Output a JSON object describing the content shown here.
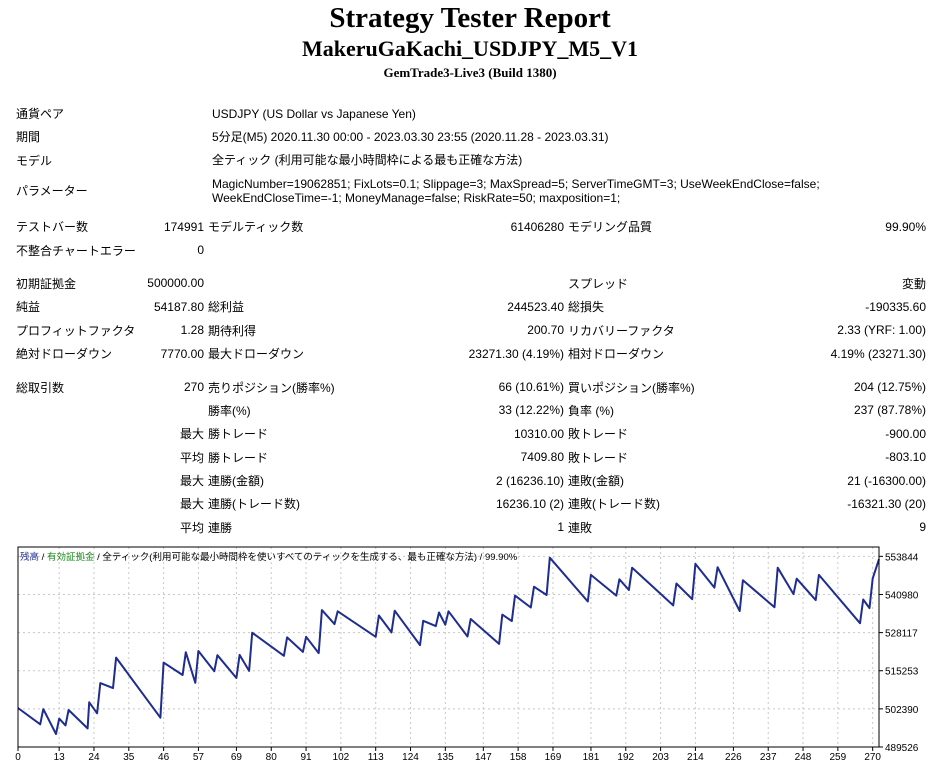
{
  "report": {
    "title": "Strategy Tester Report",
    "ea_name": "MakeruGaKachi_USDJPY_M5_V1",
    "server": "GemTrade3-Live3 (Build 1380)"
  },
  "info": [
    {
      "label": "通貨ペア",
      "value": "USDJPY (US Dollar vs Japanese Yen)"
    },
    {
      "label": "期間",
      "value": "5分足(M5) 2020.11.30 00:00 - 2023.03.30 23:55 (2020.11.28 - 2023.03.31)"
    },
    {
      "label": "モデル",
      "value": "全ティック (利用可能な最小時間枠による最も正確な方法)"
    },
    {
      "label": "パラメーター",
      "value": "MagicNumber=19062851; FixLots=0.1; Slippage=3; MaxSpread=5; ServerTimeGMT=3; UseWeekEndClose=false; WeekEndCloseTime=-1; MoneyManage=false; RiskRate=50; maxposition=1;"
    }
  ],
  "stats": {
    "bars_label": "テストバー数",
    "bars": "174991",
    "ticks_label": "モデルティック数",
    "ticks": "61406280",
    "quality_label": "モデリング品質",
    "quality": "99.90%",
    "mismatch_label": "不整合チャートエラー",
    "mismatch": "0",
    "deposit_label": "初期証拠金",
    "deposit": "500000.00",
    "spread_label": "スプレッド",
    "spread": "変動",
    "net_label": "純益",
    "net": "54187.80",
    "gross_profit_label": "総利益",
    "gross_profit": "244523.40",
    "gross_loss_label": "総損失",
    "gross_loss": "-190335.60",
    "pf_label": "プロフィットファクタ",
    "pf": "1.28",
    "expected_label": "期待利得",
    "expected": "200.70",
    "recovery_label": "リカバリーファクタ",
    "recovery": "2.33 (YRF: 1.00)",
    "abs_dd_label": "絶対ドローダウン",
    "abs_dd": "7770.00",
    "max_dd_label": "最大ドローダウン",
    "max_dd": "23271.30 (4.19%)",
    "rel_dd_label": "相対ドローダウン",
    "rel_dd": "4.19% (23271.30)",
    "total_trades_label": "総取引数",
    "total_trades": "270",
    "short_label": "売りポジション(勝率%)",
    "short": "66 (10.61%)",
    "long_label": "買いポジション(勝率%)",
    "long": "204 (12.75%)",
    "win_rate_label": "勝率(%)",
    "win_rate": "33 (12.22%)",
    "loss_rate_label": "負率 (%)",
    "loss_rate": "237 (87.78%)",
    "largest": "最大",
    "average": "平均",
    "win_trade_label": "勝トレード",
    "loss_trade_label": "敗トレード",
    "largest_win": "10310.00",
    "largest_loss": "-900.00",
    "avg_win": "7409.80",
    "avg_loss": "-803.10",
    "cons_wins_amt_label": "連勝(金額)",
    "cons_wins_amt": "2 (16236.10)",
    "cons_losses_amt_label": "連敗(金額)",
    "cons_losses_amt": "21 (-16300.00)",
    "cons_wins_cnt_label": "連勝(トレード数)",
    "cons_wins_cnt": "16236.10 (2)",
    "cons_losses_cnt_label": "連敗(トレード数)",
    "cons_losses_cnt": "-16321.30 (20)",
    "avg_cons_wins_label": "連勝",
    "avg_cons_wins": "1",
    "avg_cons_losses_label": "連敗",
    "avg_cons_losses": "9"
  },
  "legend": {
    "balance": "残高",
    "equity": "有効証拠金",
    "model": "全ティック(利用可能な最小時間枠を使いすべてのティックを生成する、最も正確な方法)",
    "quality": "99.90%"
  },
  "colors": {
    "balance_line": "#1f2d8f",
    "equity_legend": "#1a8c1a",
    "grid": "#c8c8c8"
  },
  "chart_data": {
    "type": "line",
    "title": "",
    "xlabel": "",
    "ylabel": "",
    "xlim": [
      0,
      272
    ],
    "ylim": [
      489526,
      557000
    ],
    "x_ticks": [
      0,
      13,
      24,
      35,
      46,
      57,
      69,
      80,
      91,
      102,
      113,
      124,
      135,
      147,
      158,
      169,
      181,
      192,
      203,
      214,
      226,
      237,
      248,
      259,
      270
    ],
    "y_ticks": [
      489526,
      502390,
      515253,
      528117,
      540980,
      553844
    ],
    "grid": true,
    "series": [
      {
        "name": "残高",
        "x": [
          0,
          7,
          8,
          12,
          13,
          15,
          16,
          22,
          22.5,
          25,
          26,
          30,
          31,
          45,
          46,
          52,
          53,
          56,
          57,
          62,
          63,
          69,
          70,
          73,
          74,
          84,
          85,
          90,
          91,
          95,
          96,
          100,
          101,
          113,
          114,
          118,
          119,
          127,
          128,
          132,
          133,
          135,
          136,
          142,
          143,
          152,
          153,
          156,
          157,
          162,
          163,
          167,
          168,
          180,
          181,
          189,
          190,
          193,
          194,
          207,
          208,
          213,
          214,
          220,
          221,
          228,
          229,
          239,
          240,
          245,
          246,
          252,
          253,
          266,
          267,
          269,
          270,
          272
        ],
        "values": [
          502700,
          497200,
          502300,
          493900,
          499100,
          496800,
          502000,
          495800,
          504600,
          500900,
          511100,
          509400,
          519700,
          499400,
          518000,
          513800,
          521500,
          511200,
          521900,
          515100,
          520500,
          512800,
          520600,
          515200,
          528100,
          520300,
          526500,
          521600,
          526700,
          521200,
          535700,
          531000,
          535300,
          526700,
          533900,
          528200,
          535500,
          523900,
          532100,
          530300,
          534900,
          530800,
          535300,
          526800,
          532700,
          524300,
          534200,
          532000,
          540600,
          536600,
          543600,
          540800,
          553400,
          538600,
          547600,
          540600,
          546100,
          542500,
          550000,
          537300,
          544700,
          539400,
          551300,
          543300,
          550200,
          535400,
          545800,
          536700,
          550000,
          541100,
          546300,
          539100,
          547600,
          531300,
          539300,
          536400,
          546400,
          552900
        ]
      }
    ]
  }
}
